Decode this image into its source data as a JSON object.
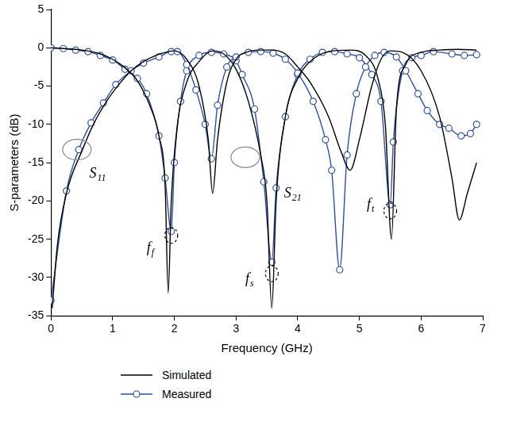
{
  "chart_data": {
    "type": "line",
    "x_label": "Frequency (GHz)",
    "y_label": "S-parameters (dB)",
    "xlim": [
      0,
      7
    ],
    "xticks": [
      0,
      1,
      2,
      3,
      4,
      5,
      6,
      7
    ],
    "ylim": [
      -35,
      5
    ],
    "yticks": [
      -35,
      -30,
      -25,
      -20,
      -15,
      -10,
      -5,
      0,
      5
    ],
    "grid": false,
    "legend": "bottom",
    "series": [
      {
        "name": "Simulated",
        "color": "#000000",
        "marker": "none",
        "line_style": "solid",
        "x": [
          0.02,
          0.1,
          0.25,
          0.5,
          0.7,
          0.9,
          1.1,
          1.3,
          1.5,
          1.7,
          1.9,
          2.0,
          2.2,
          2.4,
          2.55,
          2.62,
          2.7,
          2.85,
          3.0,
          3.2,
          3.4,
          3.58,
          3.8,
          4.0,
          4.2,
          4.5,
          4.7,
          4.85,
          5.0,
          5.2,
          5.35,
          5.5,
          5.7,
          6.0,
          6.3,
          6.5,
          6.62,
          6.75,
          6.9
        ],
        "values": [
          -34,
          -26,
          -19,
          -13.5,
          -9.8,
          -7,
          -4.8,
          -3,
          -1.8,
          -1,
          -0.5,
          -0.4,
          -1.5,
          -5,
          -12,
          -19,
          -12,
          -4.5,
          -1.5,
          -0.5,
          -0.3,
          -0.3,
          -0.8,
          -2.5,
          -4.5,
          -9,
          -13.5,
          -16,
          -12,
          -5,
          -1.5,
          -0.4,
          -0.6,
          -3,
          -9,
          -17,
          -22.5,
          -19,
          -15
        ]
      },
      {
        "name": "Simulated",
        "color": "#000000",
        "marker": "none",
        "line_style": "solid",
        "x": [
          0,
          0.5,
          0.8,
          1.0,
          1.2,
          1.4,
          1.6,
          1.75,
          1.85,
          1.9,
          1.95,
          2.05,
          2.2,
          2.4,
          2.62,
          2.8,
          3.0,
          3.2,
          3.4,
          3.5,
          3.58,
          3.65,
          3.8,
          4.0,
          4.2,
          4.5,
          4.85,
          5.1,
          5.3,
          5.42,
          5.52,
          5.6,
          5.75,
          6.0,
          6.3,
          6.6,
          6.9
        ],
        "values": [
          0,
          -0.3,
          -0.8,
          -1.5,
          -2.6,
          -4.3,
          -7.5,
          -11.5,
          -18,
          -32,
          -20,
          -10,
          -4.5,
          -1.8,
          -0.4,
          -0.8,
          -2.8,
          -7,
          -14,
          -20,
          -34,
          -20,
          -9,
          -4,
          -1.8,
          -0.5,
          -0.3,
          -1,
          -4,
          -10,
          -25,
          -8,
          -2.2,
          -0.6,
          -0.3,
          -0.2,
          -0.3
        ]
      },
      {
        "name": "Measured",
        "color": "#2e4f9e",
        "marker": "circle",
        "line_style": "solid",
        "x": [
          0,
          0.25,
          0.45,
          0.65,
          0.85,
          1.05,
          1.3,
          1.5,
          1.75,
          1.95,
          2.05,
          2.2,
          2.35,
          2.5,
          2.6,
          2.7,
          2.85,
          3.0,
          3.2,
          3.4,
          3.6,
          3.8,
          4.0,
          4.25,
          4.45,
          4.55,
          4.68,
          4.8,
          4.95,
          5.1,
          5.25,
          5.4,
          5.6,
          5.75,
          5.95,
          6.1,
          6.3,
          6.45,
          6.65,
          6.8,
          6.9
        ],
        "values": [
          -33,
          -18.7,
          -13.3,
          -9.8,
          -7.2,
          -4.8,
          -3,
          -2,
          -1.2,
          -0.5,
          -0.5,
          -2.2,
          -5.5,
          -10,
          -14.5,
          -7.5,
          -2.5,
          -1.2,
          -0.6,
          -0.5,
          -0.7,
          -1.5,
          -3.3,
          -7,
          -12,
          -16,
          -29,
          -14,
          -6,
          -2.5,
          -1,
          -0.6,
          -1.2,
          -3,
          -6,
          -8.2,
          -10,
          -10.5,
          -11.5,
          -11.2,
          -10
        ]
      },
      {
        "name": "Measured",
        "color": "#2e4f9e",
        "marker": "circle",
        "line_style": "solid",
        "x": [
          0,
          0.2,
          0.4,
          0.6,
          0.8,
          1.0,
          1.2,
          1.4,
          1.55,
          1.75,
          1.85,
          1.95,
          2.0,
          2.1,
          2.2,
          2.4,
          2.6,
          2.8,
          3.0,
          3.1,
          3.3,
          3.45,
          3.58,
          3.65,
          3.8,
          4.0,
          4.2,
          4.4,
          4.6,
          4.8,
          5.0,
          5.2,
          5.35,
          5.5,
          5.55,
          5.7,
          5.85,
          6.0,
          6.2,
          6.5,
          6.7,
          6.9
        ],
        "values": [
          0,
          -0.1,
          -0.3,
          -0.5,
          -1,
          -1.6,
          -2.8,
          -4,
          -6,
          -11.5,
          -17,
          -24,
          -15,
          -7,
          -3,
          -1,
          -0.6,
          -0.8,
          -1.7,
          -3.5,
          -8,
          -17.5,
          -28,
          -18.3,
          -9,
          -3.5,
          -1.5,
          -0.6,
          -0.5,
          -0.8,
          -1.3,
          -3.5,
          -7,
          -20.5,
          -12.3,
          -3,
          -1.3,
          -1,
          -0.5,
          -0.8,
          -1,
          -0.9
        ]
      }
    ],
    "annotations": [
      {
        "text": "S",
        "sub": "11",
        "x": 0.62,
        "y": -16.8,
        "mark": [
          0.42,
          -13.3
        ],
        "mark_style": "solid"
      },
      {
        "text": "S",
        "sub": "21",
        "x": 3.78,
        "y": -19.3,
        "mark": [
          3.15,
          -14.3
        ],
        "mark_style": "solid"
      },
      {
        "text": "f",
        "sub": "f",
        "x": 1.55,
        "y": -26.5,
        "mark": [
          1.95,
          -24.5
        ],
        "mark_style": "dashed"
      },
      {
        "text": "f",
        "sub": "s",
        "x": 3.15,
        "y": -30.5,
        "mark": [
          3.58,
          -29.5
        ],
        "mark_style": "dashed"
      },
      {
        "text": "f",
        "sub": "t",
        "x": 5.12,
        "y": -20.8,
        "mark": [
          5.5,
          -21.3
        ],
        "mark_style": "dashed"
      }
    ]
  }
}
